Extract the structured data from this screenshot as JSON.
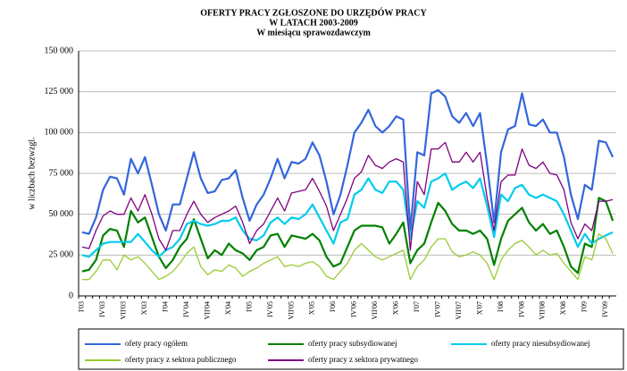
{
  "chart_data": {
    "type": "line",
    "title": "OFERTY PRACY ZGŁOSZONE DO URZĘDÓW PRACY",
    "subtitle": "W LATACH 2003-2009",
    "subtitle2": "W miesiącu sprawozdawczym",
    "y_label": "w liczbach bezwzgl.",
    "categories": [
      "I'03",
      null,
      null,
      "IV'03",
      null,
      null,
      "VII'03",
      null,
      null,
      "X'03",
      null,
      null,
      "I'04",
      null,
      null,
      "IV'04",
      null,
      null,
      "VII'04",
      null,
      null,
      "X'04",
      null,
      null,
      "I'05",
      null,
      null,
      "IV'05",
      null,
      null,
      "VII'05",
      null,
      null,
      "X'05",
      null,
      null,
      "I'06",
      null,
      null,
      "IV'06",
      null,
      null,
      "VII'06",
      null,
      null,
      "X'06",
      null,
      null,
      "I'07",
      null,
      null,
      "IV'07",
      null,
      null,
      "VII'07",
      null,
      null,
      "X'07",
      null,
      null,
      "I'08",
      null,
      null,
      "IV'08",
      null,
      null,
      "VII'08",
      null,
      null,
      "X'08",
      null,
      null,
      "I'09",
      null,
      null,
      "IV'09",
      null
    ],
    "ylim": [
      0,
      150000
    ],
    "yticks": [
      {
        "value": 0,
        "label": "0"
      },
      {
        "value": 25000,
        "label": "25 000"
      },
      {
        "value": 50000,
        "label": "50 000"
      },
      {
        "value": 75000,
        "label": "75 000"
      },
      {
        "value": 100000,
        "label": "100 000"
      },
      {
        "value": 125000,
        "label": "125 000"
      },
      {
        "value": 150000,
        "label": "150 000"
      }
    ],
    "grid": true,
    "series": [
      {
        "name": "ofety pracy ogółem",
        "color": "#3366dd",
        "values": [
          39000,
          38000,
          48000,
          65000,
          73000,
          72000,
          62000,
          84000,
          75000,
          85000,
          68000,
          50000,
          40000,
          56000,
          56000,
          72000,
          88000,
          72000,
          63000,
          64000,
          71000,
          72000,
          77000,
          60000,
          46000,
          56000,
          62000,
          72000,
          84000,
          72000,
          82000,
          81000,
          84000,
          94000,
          86000,
          70000,
          50000,
          62000,
          80000,
          100000,
          106000,
          114000,
          104000,
          100000,
          104000,
          110000,
          108000,
          40000,
          88000,
          86000,
          124000,
          126000,
          122000,
          110000,
          106000,
          112000,
          104000,
          112000,
          80000,
          45000,
          88000,
          102000,
          104000,
          124000,
          105000,
          104000,
          108000,
          100000,
          100000,
          85000,
          62000,
          47000,
          68000,
          65000,
          95000,
          94000,
          85000
        ]
      },
      {
        "name": "oferty pracy subsydiowanej",
        "color": "#008000",
        "values": [
          15000,
          16000,
          22000,
          37000,
          41000,
          40000,
          30000,
          52000,
          45000,
          48000,
          36000,
          24000,
          17000,
          22000,
          30000,
          35000,
          47000,
          35000,
          23000,
          28000,
          25000,
          32000,
          28000,
          26000,
          22000,
          28000,
          30000,
          37000,
          38000,
          30000,
          37000,
          36000,
          35000,
          38000,
          34000,
          24000,
          18000,
          20000,
          30000,
          40000,
          43000,
          43000,
          43000,
          42000,
          32000,
          38000,
          45000,
          20000,
          28000,
          32000,
          45000,
          57000,
          52000,
          44000,
          40000,
          40000,
          38000,
          40000,
          35000,
          19000,
          35000,
          46000,
          50000,
          54000,
          45000,
          40000,
          44000,
          38000,
          40000,
          30000,
          18000,
          14000,
          32000,
          30000,
          60000,
          58000,
          46000
        ]
      },
      {
        "name": "oferty pracy niesubsydiowanej",
        "color": "#00ccee",
        "values": [
          25000,
          24000,
          28000,
          32000,
          33000,
          33000,
          33000,
          33000,
          38000,
          33000,
          28000,
          24000,
          28000,
          30000,
          35000,
          44000,
          46000,
          44000,
          43000,
          44000,
          46000,
          46000,
          48000,
          40000,
          35000,
          34000,
          37000,
          45000,
          48000,
          44000,
          48000,
          47000,
          50000,
          56000,
          48000,
          40000,
          32000,
          45000,
          47000,
          62000,
          65000,
          72000,
          65000,
          63000,
          70000,
          70000,
          65000,
          35000,
          58000,
          54000,
          70000,
          72000,
          75000,
          65000,
          68000,
          70000,
          66000,
          72000,
          55000,
          36000,
          62000,
          58000,
          66000,
          68000,
          62000,
          60000,
          62000,
          60000,
          58000,
          50000,
          40000,
          30000,
          38000,
          32000,
          35000,
          37000,
          39000
        ]
      },
      {
        "name": "oferty pracy z sektora publicznego",
        "color": "#99cc33",
        "values": [
          10000,
          10000,
          15000,
          22000,
          22000,
          16000,
          25000,
          22000,
          24000,
          20000,
          15000,
          10000,
          12000,
          15000,
          20000,
          26000,
          30000,
          18000,
          13000,
          16000,
          15000,
          19000,
          17000,
          12000,
          15000,
          17000,
          20000,
          22000,
          24000,
          18000,
          19000,
          18000,
          20000,
          21000,
          18000,
          12000,
          10000,
          15000,
          20000,
          28000,
          32000,
          28000,
          24000,
          22000,
          24000,
          26000,
          28000,
          10000,
          18000,
          22000,
          30000,
          35000,
          35000,
          27000,
          24000,
          25000,
          27000,
          25000,
          20000,
          10000,
          22000,
          28000,
          32000,
          34000,
          30000,
          25000,
          28000,
          25000,
          26000,
          20000,
          15000,
          10000,
          24000,
          22000,
          38000,
          35000,
          26000
        ]
      },
      {
        "name": "oferty pracy z sektora prywatnego",
        "color": "#800080",
        "values": [
          30000,
          29000,
          40000,
          49000,
          52000,
          50000,
          50000,
          60000,
          52000,
          62000,
          50000,
          35000,
          28000,
          40000,
          40000,
          50000,
          58000,
          50000,
          45000,
          48000,
          50000,
          52000,
          55000,
          45000,
          32000,
          40000,
          44000,
          52000,
          60000,
          52000,
          63000,
          64000,
          65000,
          72000,
          64000,
          55000,
          40000,
          50000,
          60000,
          72000,
          76000,
          86000,
          80000,
          78000,
          82000,
          84000,
          82000,
          28000,
          70000,
          62000,
          90000,
          90000,
          94000,
          82000,
          82000,
          88000,
          82000,
          88000,
          60000,
          40000,
          70000,
          74000,
          74000,
          90000,
          80000,
          78000,
          82000,
          75000,
          74000,
          65000,
          45000,
          35000,
          44000,
          40000,
          58000,
          58000,
          59000
        ]
      }
    ]
  }
}
